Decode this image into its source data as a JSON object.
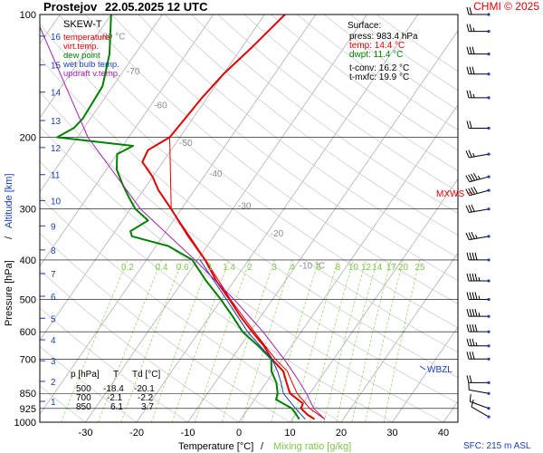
{
  "header": {
    "station": "Prostejov",
    "datetime": "22.05.2025 12 UTC",
    "credit": "CHMI © 2025"
  },
  "chart_data": {
    "type": "line",
    "title": "SKEW-T",
    "xlabel_parts": [
      "Temperature [°C]",
      "/",
      "Mixing ratio [g/kg]"
    ],
    "ylabel_parts": [
      "Pressure [hPa]",
      "/",
      "Altitude [km]"
    ],
    "pressure_ticks": [
      100,
      200,
      300,
      400,
      500,
      600,
      700,
      850,
      925,
      1000
    ],
    "temperature_ticks": [
      -30,
      -20,
      -10,
      0,
      10,
      20,
      30,
      40
    ],
    "altitude_ticks": [
      {
        "km": 1,
        "p": 889
      },
      {
        "km": 2,
        "p": 794
      },
      {
        "km": 3,
        "p": 707
      },
      {
        "km": 4,
        "p": 628
      },
      {
        "km": 5,
        "p": 556
      },
      {
        "km": 6,
        "p": 491
      },
      {
        "km": 7,
        "p": 432
      },
      {
        "km": 8,
        "p": 378
      },
      {
        "km": 9,
        "p": 330
      },
      {
        "km": 10,
        "p": 286
      },
      {
        "km": 11,
        "p": 247
      },
      {
        "km": 12,
        "p": 212
      },
      {
        "km": 13,
        "p": 182
      },
      {
        "km": 14,
        "p": 155
      },
      {
        "km": 15,
        "p": 133
      },
      {
        "km": 16,
        "p": 113
      }
    ],
    "isotherm_labels": [
      "-80 °C",
      "-70",
      "-60",
      "-50",
      "-40",
      "-30",
      "-20",
      "-10 °C"
    ],
    "isotherm_values": [
      -80,
      -70,
      -60,
      -50,
      -40,
      -30,
      -20,
      -10
    ],
    "mixing_ratio_labels": [
      "0.2",
      "0.4",
      "0.6",
      "1",
      "1.4",
      "2",
      "3",
      "4",
      "6",
      "8",
      "10",
      "12",
      "14",
      "17",
      "20",
      "25"
    ],
    "mixing_ratio_values": [
      0.2,
      0.4,
      0.6,
      1,
      1.4,
      2,
      3,
      4,
      6,
      8,
      10,
      12,
      14,
      17,
      20,
      25
    ],
    "legend": [
      {
        "label": "temperature",
        "color": "#e00000"
      },
      {
        "label": "virt.temp.",
        "color": "#e00000"
      },
      {
        "label": "dew point",
        "color": "#008000"
      },
      {
        "label": "wet bulb temp.",
        "color": "#1a3fb5"
      },
      {
        "label": "updraft v.temp.",
        "color": "#a020b0"
      }
    ],
    "series": [
      {
        "name": "temperature",
        "color": "#e00000",
        "width": 2,
        "points": [
          [
            983.4,
            14.4
          ],
          [
            960,
            12.5
          ],
          [
            925,
            10.3
          ],
          [
            900,
            10.0
          ],
          [
            850,
            6.1
          ],
          [
            800,
            4.0
          ],
          [
            750,
            1.8
          ],
          [
            700,
            -2.1
          ],
          [
            650,
            -5.4
          ],
          [
            600,
            -9.6
          ],
          [
            550,
            -14.0
          ],
          [
            500,
            -18.4
          ],
          [
            450,
            -23.5
          ],
          [
            400,
            -28.5
          ],
          [
            350,
            -35.0
          ],
          [
            300,
            -42.0
          ],
          [
            270,
            -47.0
          ],
          [
            250,
            -50.0
          ],
          [
            230,
            -54.0
          ],
          [
            215,
            -54.5
          ],
          [
            200,
            -52.0
          ],
          [
            180,
            -51.5
          ],
          [
            160,
            -51.0
          ],
          [
            140,
            -50.0
          ],
          [
            120,
            -48.0
          ],
          [
            100,
            -46.0
          ]
        ]
      },
      {
        "name": "virt.temp.",
        "color": "#e00000",
        "width": 1,
        "points": [
          [
            983.4,
            16.4
          ],
          [
            925,
            12.0
          ],
          [
            850,
            7.5
          ],
          [
            800,
            5.1
          ],
          [
            750,
            2.6
          ],
          [
            700,
            -1.4
          ],
          [
            600,
            -9.2
          ],
          [
            500,
            -18.2
          ],
          [
            400,
            -28.4
          ],
          [
            300,
            -42.0
          ],
          [
            200,
            -52.0
          ]
        ]
      },
      {
        "name": "dew point",
        "color": "#008000",
        "width": 2,
        "points": [
          [
            983.4,
            11.4
          ],
          [
            960,
            10.3
          ],
          [
            925,
            8.5
          ],
          [
            880,
            4.2
          ],
          [
            850,
            3.7
          ],
          [
            800,
            2.0
          ],
          [
            750,
            -0.5
          ],
          [
            700,
            -2.2
          ],
          [
            650,
            -6.5
          ],
          [
            600,
            -11.5
          ],
          [
            550,
            -15.5
          ],
          [
            500,
            -20.1
          ],
          [
            450,
            -25.5
          ],
          [
            400,
            -31.0
          ],
          [
            370,
            -37.5
          ],
          [
            350,
            -46.0
          ],
          [
            340,
            -47.0
          ],
          [
            320,
            -45.0
          ],
          [
            300,
            -49.0
          ],
          [
            280,
            -52.0
          ],
          [
            260,
            -55.0
          ],
          [
            240,
            -58.0
          ],
          [
            220,
            -60.0
          ],
          [
            210,
            -58.0
          ],
          [
            200,
            -74.0
          ],
          [
            190,
            -72.0
          ],
          [
            180,
            -71.5
          ],
          [
            150,
            -72.0
          ],
          [
            125,
            -75.0
          ],
          [
            100,
            -80.0
          ]
        ]
      },
      {
        "name": "wet bulb temp.",
        "color": "#1a3fb5",
        "width": 1,
        "points": [
          [
            983.4,
            12.6
          ],
          [
            925,
            9.2
          ],
          [
            850,
            4.8
          ],
          [
            800,
            2.9
          ],
          [
            750,
            0.7
          ],
          [
            700,
            -2.1
          ],
          [
            600,
            -10.5
          ],
          [
            500,
            -19.0
          ],
          [
            400,
            -29.5
          ]
        ]
      },
      {
        "name": "updraft v.temp.",
        "color": "#a020b0",
        "width": 1,
        "points": [
          [
            983.4,
            16.4
          ],
          [
            925,
            12.8
          ],
          [
            850,
            9.3
          ],
          [
            800,
            6.6
          ],
          [
            750,
            3.6
          ],
          [
            700,
            0.3
          ],
          [
            600,
            -7.5
          ],
          [
            500,
            -17.5
          ],
          [
            400,
            -30.5
          ],
          [
            300,
            -48.0
          ],
          [
            200,
            -68.0
          ],
          [
            100,
            -95.0
          ]
        ]
      }
    ],
    "surface": {
      "heading": "Surface:",
      "press": "press: 983.4 hPa",
      "temp": "temp: 14.4 °C",
      "dwpt": "dwpt: 11.4 °C",
      "tconv": "t-conv: 16.2 °C",
      "tmxfc": "t-mxfc: 19.9 °C"
    },
    "table": {
      "header": [
        "p [hPa]",
        "T",
        "Td [°C]"
      ],
      "rows": [
        [
          "500",
          "-18.4",
          "-20.1"
        ],
        [
          "700",
          "-2.1",
          "-2.2"
        ],
        [
          "850",
          "6.1",
          "3.7"
        ]
      ]
    },
    "annotations": {
      "mxws": "MXWS",
      "wbzl": "WBZL",
      "sfc": "SFC: 215 m ASL"
    },
    "wind_barbs": [
      {
        "p": 970,
        "dir": 300,
        "speed": 10
      },
      {
        "p": 925,
        "dir": 290,
        "speed": 10
      },
      {
        "p": 850,
        "dir": 280,
        "speed": 10
      },
      {
        "p": 800,
        "dir": 270,
        "speed": 20
      },
      {
        "p": 700,
        "dir": 270,
        "speed": 30
      },
      {
        "p": 650,
        "dir": 270,
        "speed": 35
      },
      {
        "p": 600,
        "dir": 270,
        "speed": 40
      },
      {
        "p": 550,
        "dir": 270,
        "speed": 45
      },
      {
        "p": 500,
        "dir": 270,
        "speed": 45
      },
      {
        "p": 450,
        "dir": 270,
        "speed": 45
      },
      {
        "p": 400,
        "dir": 270,
        "speed": 40
      },
      {
        "p": 350,
        "dir": 260,
        "speed": 35
      },
      {
        "p": 300,
        "dir": 260,
        "speed": 30
      },
      {
        "p": 270,
        "dir": 255,
        "speed": 40
      },
      {
        "p": 250,
        "dir": 255,
        "speed": 45
      },
      {
        "p": 220,
        "dir": 260,
        "speed": 25
      },
      {
        "p": 190,
        "dir": 270,
        "speed": 20
      },
      {
        "p": 160,
        "dir": 270,
        "speed": 25
      },
      {
        "p": 140,
        "dir": 270,
        "speed": 30
      },
      {
        "p": 125,
        "dir": 270,
        "speed": 30
      },
      {
        "p": 110,
        "dir": 270,
        "speed": 25
      },
      {
        "p": 100,
        "dir": 270,
        "speed": 20
      }
    ]
  }
}
